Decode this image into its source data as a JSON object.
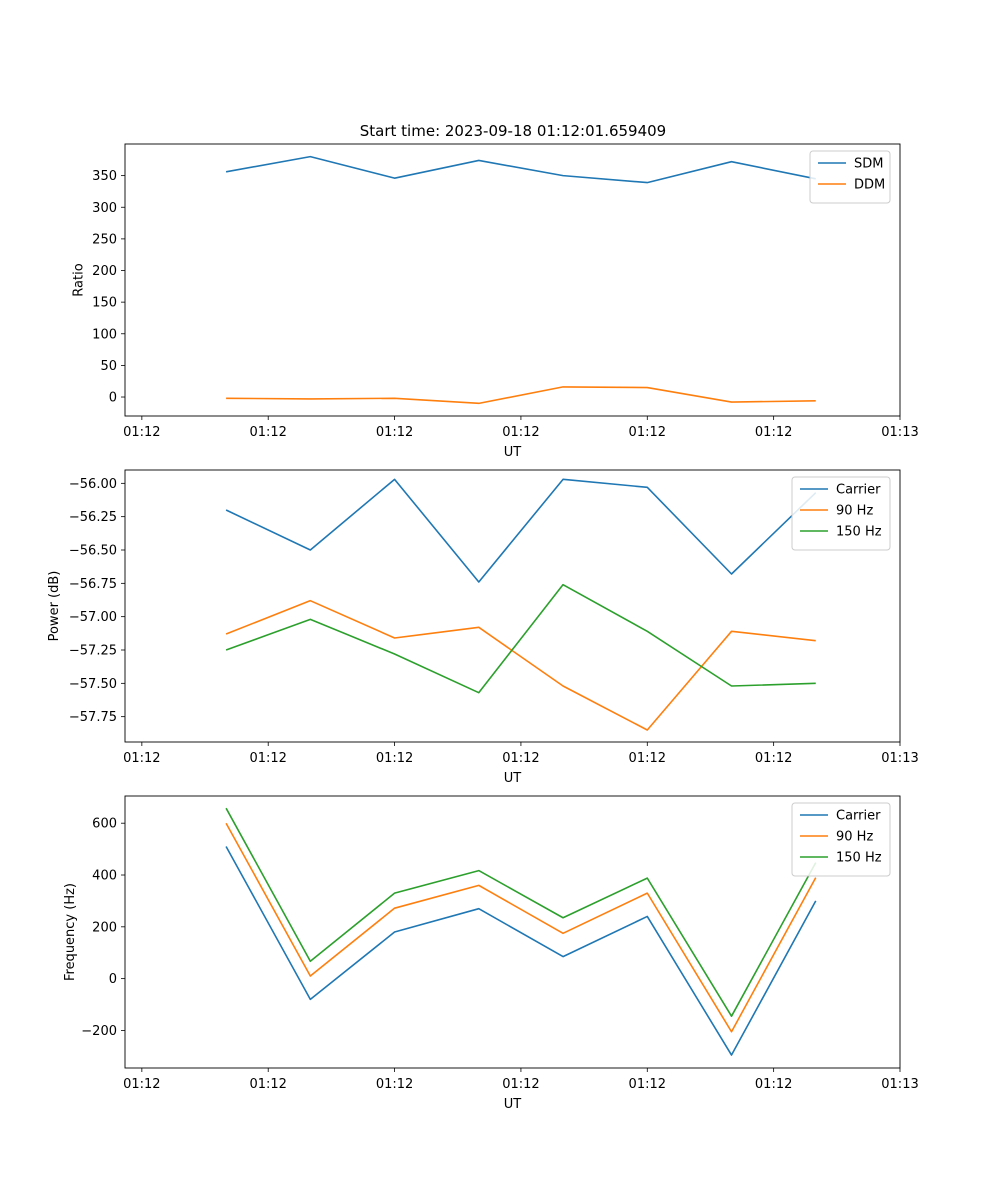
{
  "figure_title": "Start time: 2023-09-18 01:12:01.659409",
  "chart_data": [
    {
      "type": "line",
      "title": "Start time: 2023-09-18 01:12:01.659409",
      "xlabel": "UT",
      "ylabel": "Ratio",
      "x": [
        1,
        2,
        3,
        4,
        5,
        6,
        7,
        8
      ],
      "xlim": [
        -0.2,
        9.0
      ],
      "xticks": [
        0,
        1.5,
        3,
        4.5,
        6,
        7.5,
        9
      ],
      "xtick_labels": [
        "01:12",
        "01:12",
        "01:12",
        "01:12",
        "01:12",
        "01:12",
        "01:13"
      ],
      "ylim": [
        -30,
        400
      ],
      "yticks": [
        0,
        50,
        100,
        150,
        200,
        250,
        300,
        350
      ],
      "ytick_labels": [
        "0",
        "50",
        "100",
        "150",
        "200",
        "250",
        "300",
        "350"
      ],
      "legend_position": "top-right",
      "series": [
        {
          "name": "SDM",
          "color": "#1f77b4",
          "values": [
            356,
            380,
            346,
            374,
            350,
            339,
            372,
            345
          ]
        },
        {
          "name": "DDM",
          "color": "#ff7f0e",
          "values": [
            -2,
            -3,
            -2,
            -10,
            16,
            15,
            -8,
            -6
          ]
        }
      ]
    },
    {
      "type": "line",
      "title": "",
      "xlabel": "UT",
      "ylabel": "Power (dB)",
      "x": [
        1,
        2,
        3,
        4,
        5,
        6,
        7,
        8
      ],
      "xlim": [
        -0.2,
        9.0
      ],
      "xticks": [
        0,
        1.5,
        3,
        4.5,
        6,
        7.5,
        9
      ],
      "xtick_labels": [
        "01:12",
        "01:12",
        "01:12",
        "01:12",
        "01:12",
        "01:12",
        "01:13"
      ],
      "ylim": [
        -57.94,
        -55.9
      ],
      "yticks": [
        -56.0,
        -56.25,
        -56.5,
        -56.75,
        -57.0,
        -57.25,
        -57.5,
        -57.75
      ],
      "ytick_labels": [
        "−56.00",
        "−56.25",
        "−56.50",
        "−56.75",
        "−57.00",
        "−57.25",
        "−57.50",
        "−57.75"
      ],
      "legend_position": "top-right",
      "series": [
        {
          "name": "Carrier",
          "color": "#1f77b4",
          "values": [
            -56.2,
            -56.5,
            -55.97,
            -56.74,
            -55.97,
            -56.03,
            -56.68,
            -56.07
          ]
        },
        {
          "name": "90 Hz",
          "color": "#ff7f0e",
          "values": [
            -57.13,
            -56.88,
            -57.16,
            -57.08,
            -57.52,
            -57.85,
            -57.11,
            -57.18
          ]
        },
        {
          "name": "150 Hz",
          "color": "#2ca02c",
          "values": [
            -57.25,
            -57.02,
            -57.28,
            -57.57,
            -56.76,
            -57.11,
            -57.52,
            -57.5
          ]
        }
      ]
    },
    {
      "type": "line",
      "title": "",
      "xlabel": "UT",
      "ylabel": "Frequency (Hz)",
      "x": [
        1,
        2,
        3,
        4,
        5,
        6,
        7,
        8
      ],
      "xlim": [
        -0.2,
        9.0
      ],
      "xticks": [
        0,
        1.5,
        3,
        4.5,
        6,
        7.5,
        9
      ],
      "xtick_labels": [
        "01:12",
        "01:12",
        "01:12",
        "01:12",
        "01:12",
        "01:12",
        "01:13"
      ],
      "ylim": [
        -345,
        705
      ],
      "yticks": [
        600,
        400,
        200,
        0,
        -200
      ],
      "ytick_labels": [
        "600",
        "400",
        "200",
        "0",
        "−200"
      ],
      "legend_position": "top-right",
      "series": [
        {
          "name": "Carrier",
          "color": "#1f77b4",
          "values": [
            510,
            -80,
            180,
            270,
            85,
            240,
            -295,
            300
          ]
        },
        {
          "name": "90 Hz",
          "color": "#ff7f0e",
          "values": [
            600,
            10,
            272,
            360,
            175,
            330,
            -205,
            390
          ]
        },
        {
          "name": "150 Hz",
          "color": "#2ca02c",
          "values": [
            658,
            67,
            330,
            417,
            235,
            388,
            -145,
            448
          ]
        }
      ]
    }
  ]
}
